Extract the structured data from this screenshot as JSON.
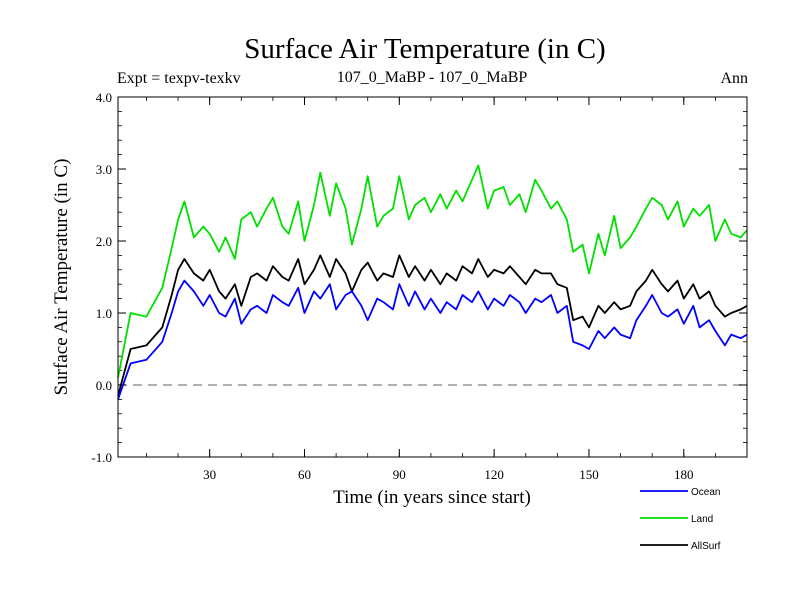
{
  "chart_data": {
    "type": "line",
    "title": "Surface Air Temperature (in C)",
    "subtitle_left": "Expt = texpv-texkv",
    "subtitle_center": "107_0_MaBP - 107_0_MaBP",
    "subtitle_right": "Ann",
    "xlabel": "Time (in years since start)",
    "ylabel": "Surface Air Temperature (in C)",
    "xlim": [
      1,
      200
    ],
    "ylim": [
      -1.0,
      4.0
    ],
    "xticks": [
      30,
      60,
      90,
      120,
      150,
      180
    ],
    "xtick_labels": [
      "30",
      "60",
      "90",
      "120",
      "150",
      "180"
    ],
    "yticks": [
      -1.0,
      0.0,
      1.0,
      2.0,
      3.0,
      4.0
    ],
    "ytick_labels": [
      "-1.0",
      "0.0",
      "1.0",
      "2.0",
      "3.0",
      "4.0"
    ],
    "reference_line": {
      "y": 0.0,
      "style": "dashed",
      "color": "#808080"
    },
    "x": [
      1,
      5,
      10,
      15,
      18,
      20,
      22,
      25,
      28,
      30,
      33,
      35,
      38,
      40,
      43,
      45,
      48,
      50,
      53,
      55,
      58,
      60,
      63,
      65,
      68,
      70,
      73,
      75,
      78,
      80,
      83,
      85,
      88,
      90,
      93,
      95,
      98,
      100,
      103,
      105,
      108,
      110,
      113,
      115,
      118,
      120,
      123,
      125,
      128,
      130,
      133,
      135,
      138,
      140,
      143,
      145,
      148,
      150,
      153,
      155,
      158,
      160,
      163,
      165,
      168,
      170,
      173,
      175,
      178,
      180,
      183,
      185,
      188,
      190,
      193,
      195,
      198,
      200
    ],
    "series": [
      {
        "name": "Ocean",
        "color": "#0000ff",
        "values": [
          -0.2,
          0.3,
          0.35,
          0.6,
          1.0,
          1.3,
          1.45,
          1.3,
          1.1,
          1.25,
          1.0,
          0.95,
          1.2,
          0.85,
          1.05,
          1.1,
          1.0,
          1.25,
          1.15,
          1.1,
          1.35,
          1.0,
          1.3,
          1.2,
          1.4,
          1.05,
          1.25,
          1.3,
          1.1,
          0.9,
          1.2,
          1.15,
          1.05,
          1.4,
          1.1,
          1.3,
          1.05,
          1.2,
          1.0,
          1.15,
          1.05,
          1.25,
          1.15,
          1.3,
          1.05,
          1.2,
          1.1,
          1.25,
          1.15,
          1.0,
          1.2,
          1.15,
          1.25,
          1.0,
          1.1,
          0.6,
          0.55,
          0.5,
          0.75,
          0.65,
          0.8,
          0.7,
          0.65,
          0.9,
          1.1,
          1.25,
          1.0,
          0.95,
          1.05,
          0.85,
          1.1,
          0.8,
          0.9,
          0.75,
          0.55,
          0.7,
          0.65,
          0.7
        ]
      },
      {
        "name": "Land",
        "color": "#00e000",
        "values": [
          0.1,
          1.0,
          0.95,
          1.35,
          1.9,
          2.3,
          2.55,
          2.05,
          2.2,
          2.1,
          1.85,
          2.05,
          1.75,
          2.3,
          2.4,
          2.2,
          2.45,
          2.6,
          2.2,
          2.1,
          2.55,
          2.0,
          2.5,
          2.95,
          2.35,
          2.8,
          2.45,
          1.95,
          2.45,
          2.9,
          2.2,
          2.35,
          2.45,
          2.9,
          2.3,
          2.5,
          2.6,
          2.4,
          2.65,
          2.45,
          2.7,
          2.55,
          2.85,
          3.05,
          2.45,
          2.7,
          2.75,
          2.5,
          2.65,
          2.4,
          2.85,
          2.7,
          2.45,
          2.55,
          2.3,
          1.85,
          1.95,
          1.55,
          2.1,
          1.8,
          2.35,
          1.9,
          2.05,
          2.2,
          2.45,
          2.6,
          2.5,
          2.3,
          2.55,
          2.2,
          2.45,
          2.35,
          2.5,
          2.0,
          2.3,
          2.1,
          2.05,
          2.15
        ]
      },
      {
        "name": "AllSurf",
        "color": "#000000",
        "values": [
          -0.15,
          0.5,
          0.55,
          0.8,
          1.25,
          1.6,
          1.75,
          1.55,
          1.45,
          1.6,
          1.3,
          1.2,
          1.4,
          1.1,
          1.5,
          1.55,
          1.45,
          1.65,
          1.5,
          1.45,
          1.75,
          1.4,
          1.6,
          1.8,
          1.5,
          1.75,
          1.55,
          1.3,
          1.6,
          1.7,
          1.45,
          1.55,
          1.5,
          1.8,
          1.5,
          1.65,
          1.45,
          1.6,
          1.4,
          1.55,
          1.45,
          1.65,
          1.55,
          1.75,
          1.5,
          1.6,
          1.55,
          1.65,
          1.5,
          1.4,
          1.6,
          1.55,
          1.55,
          1.4,
          1.35,
          0.9,
          0.95,
          0.8,
          1.1,
          1.0,
          1.15,
          1.05,
          1.1,
          1.3,
          1.45,
          1.6,
          1.4,
          1.3,
          1.45,
          1.2,
          1.4,
          1.2,
          1.3,
          1.1,
          0.95,
          1.0,
          1.05,
          1.1
        ]
      }
    ],
    "legend": {
      "placement": "bottom-right",
      "entries": [
        "Ocean",
        "Land",
        "AllSurf"
      ]
    }
  }
}
